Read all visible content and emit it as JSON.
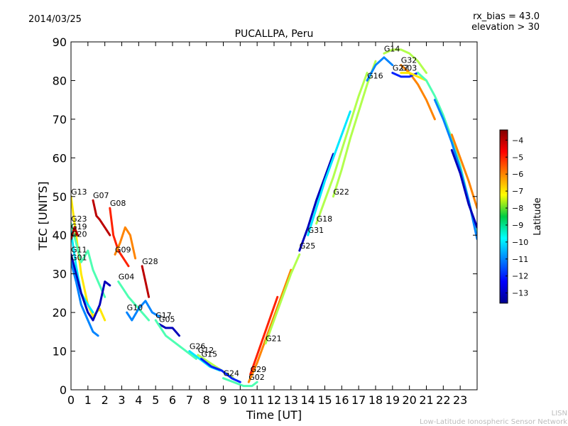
{
  "header": {
    "date": "2014/03/25",
    "rx_bias": "rx_bias = 43.0",
    "elevation": "elevation > 30"
  },
  "watermark": {
    "line1": "LISN",
    "line2": "Low-Latitude Ionospheric Sensor Network"
  },
  "chart_data": {
    "type": "line",
    "title": "PUCALLPA, Peru",
    "xlabel": "Time [UT]",
    "ylabel": "TEC [UNITS]",
    "xlim": [
      0,
      24
    ],
    "ylim": [
      0,
      90
    ],
    "xticks": [
      0,
      1,
      2,
      3,
      4,
      5,
      6,
      7,
      8,
      9,
      10,
      11,
      12,
      13,
      14,
      15,
      16,
      17,
      18,
      19,
      20,
      21,
      22,
      23
    ],
    "yticks": [
      0,
      10,
      20,
      30,
      40,
      50,
      60,
      70,
      80,
      90
    ],
    "colorbar": {
      "label": "Latitude",
      "min": -13.6,
      "max": -3.4,
      "ticks": [
        -4,
        -5,
        -6,
        -7,
        -8,
        -9,
        -10,
        -11,
        -12,
        -13
      ]
    },
    "series": [
      {
        "name": "G13",
        "lat": -7,
        "x": [
          0,
          0.3,
          0.6,
          1.0,
          1.3,
          1.7,
          2.0
        ],
        "y": [
          50,
          40,
          30,
          22,
          19,
          21,
          18
        ]
      },
      {
        "name": "G23",
        "lat": -9,
        "x": [
          0,
          0.3,
          0.6,
          1.0,
          1.3,
          1.7,
          2.0
        ],
        "y": [
          43,
          38,
          33,
          36,
          31,
          27,
          24
        ]
      },
      {
        "name": "G19",
        "lat": -10,
        "x": [
          0,
          0.3,
          0.6,
          1.0,
          1.3
        ],
        "y": [
          41,
          32,
          25,
          22,
          20
        ]
      },
      {
        "name": "G20",
        "lat": -4,
        "x": [
          0,
          0.2,
          0.4
        ],
        "y": [
          39,
          42,
          40
        ]
      },
      {
        "name": "G11",
        "lat": -13,
        "x": [
          0,
          0.3,
          0.6,
          1.0,
          1.3,
          1.7,
          2.0,
          2.3
        ],
        "y": [
          35,
          30,
          25,
          20,
          18,
          22,
          28,
          27
        ]
      },
      {
        "name": "G01",
        "lat": -11,
        "x": [
          0,
          0.3,
          0.6,
          1.0,
          1.3,
          1.6
        ],
        "y": [
          33,
          28,
          22,
          18,
          15,
          14
        ]
      },
      {
        "name": "G07",
        "lat": -4,
        "x": [
          1.3,
          1.5,
          1.7,
          2.0,
          2.3
        ],
        "y": [
          49,
          45,
          44,
          42,
          40
        ]
      },
      {
        "name": "G08",
        "lat": -5,
        "x": [
          2.3,
          2.5,
          2.8,
          3.1,
          3.4
        ],
        "y": [
          47,
          40,
          36,
          34,
          32
        ]
      },
      {
        "name": "G09",
        "lat": -6,
        "x": [
          2.6,
          2.9,
          3.2,
          3.5,
          3.8
        ],
        "y": [
          35,
          38,
          42,
          40,
          34
        ]
      },
      {
        "name": "G04",
        "lat": -9,
        "x": [
          2.8,
          3.1,
          3.4,
          3.8,
          4.2,
          4.6
        ],
        "y": [
          28,
          26,
          24,
          22,
          20,
          18
        ]
      },
      {
        "name": "G10",
        "lat": -11,
        "x": [
          3.3,
          3.6,
          4.0,
          4.4,
          4.8,
          5.2
        ],
        "y": [
          20,
          18,
          21,
          23,
          20,
          19
        ]
      },
      {
        "name": "G28",
        "lat": -4,
        "x": [
          4.2,
          4.4,
          4.6
        ],
        "y": [
          32,
          28,
          24
        ]
      },
      {
        "name": "G05",
        "lat": -13,
        "x": [
          5.2,
          5.6,
          6.0,
          6.4
        ],
        "y": [
          17,
          16,
          16,
          14
        ]
      },
      {
        "name": "G17",
        "lat": -9,
        "x": [
          5.0,
          5.6,
          6.2,
          6.8,
          7.4
        ],
        "y": [
          18,
          14,
          12,
          10,
          8
        ]
      },
      {
        "name": "G26",
        "lat": -10,
        "x": [
          7.0,
          7.6,
          8.2,
          8.8
        ],
        "y": [
          10,
          8,
          6,
          5
        ]
      },
      {
        "name": "G12",
        "lat": -8,
        "x": [
          7.5,
          8.2,
          8.9,
          9.6
        ],
        "y": [
          9,
          7,
          5,
          3
        ]
      },
      {
        "name": "G15",
        "lat": -12,
        "x": [
          7.7,
          8.3,
          8.9,
          9.5,
          10.0
        ],
        "y": [
          8,
          6,
          5,
          3,
          2
        ]
      },
      {
        "name": "G24",
        "lat": -9,
        "x": [
          9.0,
          9.6,
          10.2,
          10.7,
          11.0
        ],
        "y": [
          3,
          2,
          1,
          1,
          2
        ]
      },
      {
        "name": "G02",
        "lat": -6,
        "x": [
          10.5,
          11.0,
          11.5,
          12.0,
          12.5,
          13.0
        ],
        "y": [
          2,
          7,
          13,
          19,
          25,
          31
        ]
      },
      {
        "name": "G29",
        "lat": -5,
        "x": [
          10.6,
          11.0,
          11.4,
          11.8,
          12.2
        ],
        "y": [
          4,
          9,
          14,
          19,
          24
        ]
      },
      {
        "name": "G21",
        "lat": -8,
        "x": [
          11.5,
          12.0,
          12.5,
          13.0,
          13.5
        ],
        "y": [
          12,
          18,
          24,
          30,
          35
        ]
      },
      {
        "name": "G25",
        "lat": -13,
        "x": [
          13.5,
          14.0,
          14.5,
          15.0,
          15.5
        ],
        "y": [
          36,
          42,
          49,
          55,
          61
        ]
      },
      {
        "name": "G31",
        "lat": -10,
        "x": [
          14.0,
          14.5,
          15.0,
          15.5,
          16.0,
          16.5
        ],
        "y": [
          40,
          47,
          54,
          60,
          66,
          72
        ]
      },
      {
        "name": "G18",
        "lat": -8,
        "x": [
          14.5,
          15.0,
          15.5,
          16.0,
          16.5,
          17.0,
          17.5
        ],
        "y": [
          43,
          49,
          55,
          62,
          69,
          76,
          82
        ]
      },
      {
        "name": "G22",
        "lat": -8,
        "x": [
          15.5,
          16.0,
          16.5,
          17.0,
          17.5,
          18.0
        ],
        "y": [
          50,
          57,
          65,
          72,
          79,
          85
        ]
      },
      {
        "name": "G16",
        "lat": -11,
        "x": [
          17.5,
          18.0,
          18.5,
          19.0
        ],
        "y": [
          80,
          84,
          86,
          84
        ]
      },
      {
        "name": "G14",
        "lat": -8,
        "x": [
          18.5,
          19.0,
          19.5,
          20.0,
          20.5,
          21.0
        ],
        "y": [
          87,
          88,
          88,
          87,
          85,
          82
        ]
      },
      {
        "name": "G32",
        "lat": -6,
        "x": [
          19.5,
          20.0,
          20.5,
          21.0,
          21.5
        ],
        "y": [
          84,
          82,
          79,
          75,
          70
        ]
      },
      {
        "name": "G27",
        "lat": -12,
        "x": [
          19.0,
          19.5,
          20.0,
          20.5
        ],
        "y": [
          82,
          81,
          81,
          82
        ]
      },
      {
        "name": "G03",
        "lat": -7,
        "x": [
          19.5,
          20.0,
          20.5,
          21.0
        ],
        "y": [
          82,
          82,
          81,
          80
        ]
      },
      {
        "name": "",
        "lat": -9,
        "x": [
          20.5,
          21.0,
          21.5,
          22.0,
          22.5,
          23.0,
          23.5,
          24.0
        ],
        "y": [
          82,
          80,
          76,
          71,
          65,
          58,
          49,
          40
        ]
      },
      {
        "name": "",
        "lat": -11,
        "x": [
          21.5,
          22.0,
          22.5,
          23.0,
          23.5,
          24.0
        ],
        "y": [
          75,
          70,
          64,
          57,
          49,
          39
        ]
      },
      {
        "name": "",
        "lat": -13,
        "x": [
          22.5,
          23.0,
          23.5,
          24.0
        ],
        "y": [
          62,
          56,
          48,
          42
        ]
      },
      {
        "name": "",
        "lat": -6,
        "x": [
          22.5,
          23.0,
          23.5,
          24.0
        ],
        "y": [
          66,
          60,
          54,
          47
        ]
      }
    ]
  }
}
